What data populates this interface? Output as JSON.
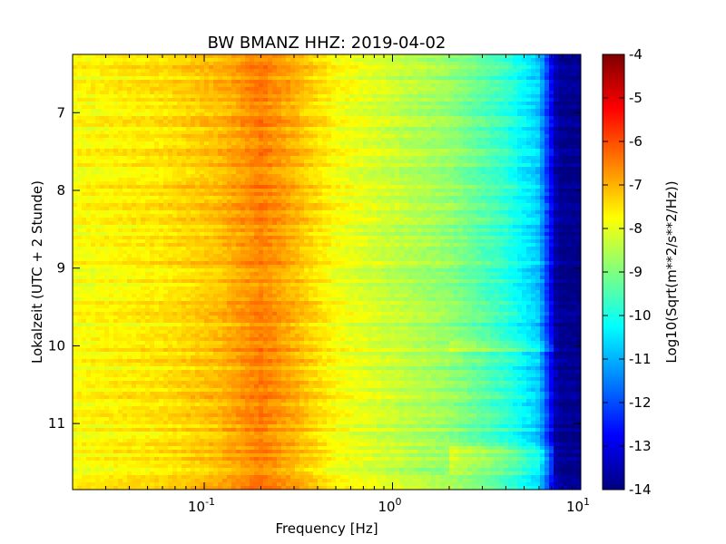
{
  "chart_data": {
    "type": "heatmap",
    "title": "BW BMANZ HHZ: 2019-04-02",
    "xlabel": "Frequency [Hz]",
    "ylabel": "Lokalzeit (UTC + 2 Stunde)",
    "x_scale": "log",
    "xlim": [
      0.02,
      10
    ],
    "ylim": [
      11.85,
      6.25
    ],
    "x_ticks": [
      {
        "base": "10",
        "exp": "-1",
        "value": 0.1
      },
      {
        "base": "10",
        "exp": "0",
        "value": 1
      },
      {
        "base": "10",
        "exp": "1",
        "value": 10
      }
    ],
    "y_ticks": [
      {
        "label": "7",
        "value": 7
      },
      {
        "label": "8",
        "value": 8
      },
      {
        "label": "9",
        "value": 9
      },
      {
        "label": "10",
        "value": 10
      },
      {
        "label": "11",
        "value": 11
      }
    ],
    "colorbar": {
      "label": "Log10(Sqrt(m**2/s**2/Hz))",
      "colormap": "jet",
      "range": [
        -14,
        -4
      ],
      "ticks": [
        "-4",
        "-5",
        "-6",
        "-7",
        "-8",
        "-9",
        "-10",
        "-11",
        "-12",
        "-13",
        "-14"
      ]
    },
    "spectral_profile": {
      "frequency_hz": [
        0.02,
        0.06,
        0.12,
        0.2,
        0.3,
        0.5,
        1,
        2,
        4,
        6,
        7.5,
        10
      ],
      "log10_amplitude": [
        -7.8,
        -7.5,
        -7.1,
        -6.5,
        -7.0,
        -7.8,
        -8.3,
        -8.8,
        -9.8,
        -10.8,
        -13.8,
        -13.9
      ]
    }
  }
}
